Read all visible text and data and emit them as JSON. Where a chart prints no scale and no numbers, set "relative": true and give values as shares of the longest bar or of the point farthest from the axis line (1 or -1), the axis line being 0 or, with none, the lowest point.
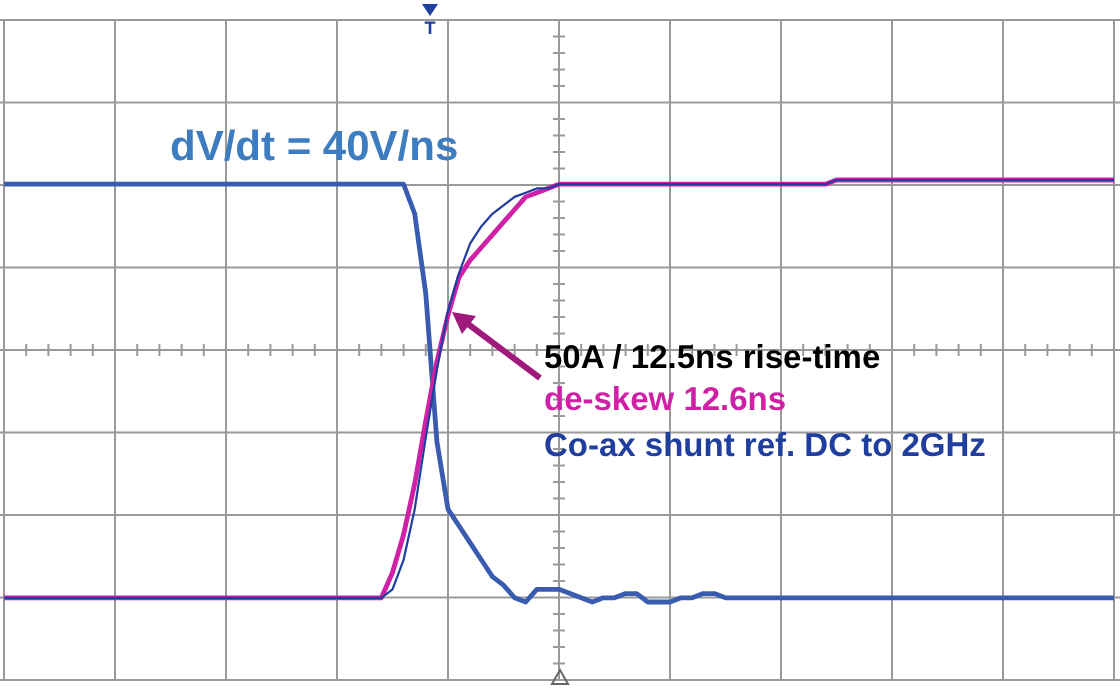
{
  "chart_data": {
    "type": "line",
    "relative": true,
    "grid": true,
    "legend": "right",
    "line_style": "solid",
    "annotations": [
      "dV/dt = 40V/ns",
      "50A / 12.5ns rise-time",
      "T"
    ],
    "categories": [
      null,
      null,
      null,
      null,
      null,
      null,
      null,
      null,
      null,
      null,
      null,
      null,
      null,
      null,
      null,
      null,
      null,
      null,
      null,
      null,
      null,
      null,
      null,
      null,
      null,
      null,
      null,
      null,
      null,
      null,
      null,
      null,
      null,
      null,
      null,
      null,
      null,
      null,
      null,
      null,
      null,
      null,
      null,
      null,
      null,
      null,
      null,
      null,
      null,
      null,
      null,
      null,
      null,
      null,
      null,
      null,
      null,
      null,
      null,
      null,
      null,
      null,
      null,
      null,
      null,
      null,
      null,
      null,
      null,
      null,
      null,
      null,
      null,
      null,
      null,
      null,
      null,
      null,
      null,
      null,
      null,
      null,
      null,
      null,
      null,
      null,
      null,
      null,
      null,
      null,
      null,
      null,
      null,
      null,
      null,
      null,
      null,
      null,
      null,
      null,
      null
    ],
    "series": [
      {
        "color": "#3a5cb0",
        "values": [
          0.99,
          0.99,
          0.99,
          0.99,
          0.99,
          0.99,
          0.99,
          0.99,
          0.99,
          0.99,
          0.99,
          0.99,
          0.99,
          0.99,
          0.99,
          0.99,
          0.99,
          0.99,
          0.99,
          0.99,
          0.99,
          0.99,
          0.99,
          0.99,
          0.99,
          0.99,
          0.99,
          0.99,
          0.99,
          0.99,
          0.99,
          0.99,
          0.99,
          0.99,
          0.99,
          0.99,
          0.99,
          0.92,
          0.73,
          0.38,
          0.22,
          0.18,
          0.14,
          0.1,
          0.06,
          0.04,
          0.01,
          0,
          0.03,
          0.03,
          0.03,
          0.02,
          0.01,
          0,
          0.01,
          0.01,
          0.02,
          0.02,
          0,
          0,
          0,
          0.01,
          0.01,
          0.02,
          0.02,
          0.01,
          0.01,
          0.01,
          0.01,
          0.01,
          0.01,
          0.01,
          0.01,
          0.01,
          0.01,
          0.01,
          0.01,
          0.01,
          0.01,
          0.01,
          0.01,
          0.01,
          0.01,
          0.01,
          0.01,
          0.01,
          0.01,
          0.01,
          0.01,
          0.01,
          0.01,
          0.01,
          0.01,
          0.01,
          0.01,
          0.01,
          0.01,
          0.01,
          0.01,
          0.01,
          0.01
        ]
      },
      {
        "name": "de-skew 12.6ns",
        "color": "#d021a6",
        "values": [
          0.01,
          0.01,
          0.01,
          0.01,
          0.01,
          0.01,
          0.01,
          0.01,
          0.01,
          0.01,
          0.01,
          0.01,
          0.01,
          0.01,
          0.01,
          0.01,
          0.01,
          0.01,
          0.01,
          0.01,
          0.01,
          0.01,
          0.01,
          0.01,
          0.01,
          0.01,
          0.01,
          0.01,
          0.01,
          0.01,
          0.01,
          0.01,
          0.01,
          0.01,
          0.01,
          0.07,
          0.16,
          0.28,
          0.43,
          0.57,
          0.68,
          0.77,
          0.81,
          0.84,
          0.87,
          0.9,
          0.93,
          0.96,
          0.97,
          0.98,
          0.99,
          0.99,
          0.99,
          0.99,
          0.99,
          0.99,
          0.99,
          0.99,
          0.99,
          0.99,
          0.99,
          0.99,
          0.99,
          0.99,
          0.99,
          0.99,
          0.99,
          0.99,
          0.99,
          0.99,
          0.99,
          0.99,
          0.99,
          0.99,
          0.99,
          1,
          1,
          1,
          1,
          1,
          1,
          1,
          1,
          1,
          1,
          1,
          1,
          1,
          1,
          1,
          1,
          1,
          1,
          1,
          1,
          1,
          1,
          1,
          1,
          1,
          1
        ]
      },
      {
        "name": "Co-ax shunt ref. DC to 2GHz",
        "color": "#1f3e9e",
        "values": [
          0.01,
          0.01,
          0.01,
          0.01,
          0.01,
          0.01,
          0.01,
          0.01,
          0.01,
          0.01,
          0.01,
          0.01,
          0.01,
          0.01,
          0.01,
          0.01,
          0.01,
          0.01,
          0.01,
          0.01,
          0.01,
          0.01,
          0.01,
          0.01,
          0.01,
          0.01,
          0.01,
          0.01,
          0.01,
          0.01,
          0.01,
          0.01,
          0.01,
          0.01,
          0.01,
          0.03,
          0.1,
          0.22,
          0.39,
          0.55,
          0.69,
          0.78,
          0.85,
          0.89,
          0.92,
          0.94,
          0.96,
          0.97,
          0.98,
          0.98,
          0.99,
          0.99,
          0.99,
          0.99,
          0.99,
          0.99,
          0.99,
          0.99,
          0.99,
          0.99,
          0.99,
          0.99,
          0.99,
          0.99,
          0.99,
          0.99,
          0.99,
          0.99,
          0.99,
          0.99,
          0.99,
          0.99,
          0.99,
          0.99,
          0.99,
          1,
          1,
          1,
          1,
          1,
          1,
          1,
          1,
          1,
          1,
          1,
          1,
          1,
          1,
          1,
          1,
          1,
          1,
          1,
          1,
          1,
          1,
          1,
          1,
          1,
          1
        ]
      }
    ]
  }
}
